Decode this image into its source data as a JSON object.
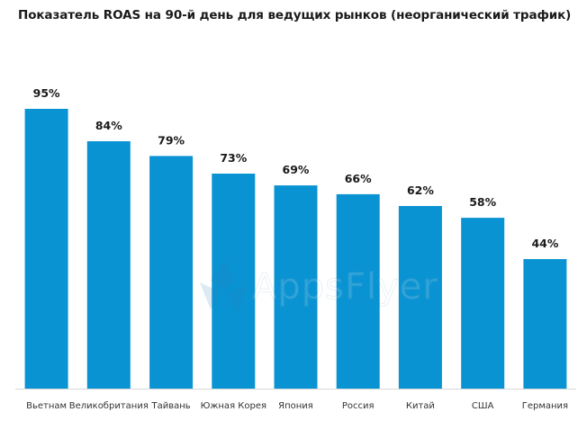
{
  "title": "Показатель ROAS на 90-й день для ведущих рынков (неорганический трафик)",
  "watermark": "AppsFlyer",
  "colors": {
    "bar": "#0a93d2",
    "axis": "#d9d9d9"
  },
  "chart_data": {
    "type": "bar",
    "title": "Показатель ROAS на 90-й день для ведущих рынков (неорганический трафик)",
    "xlabel": "",
    "ylabel": "",
    "ylim": [
      0,
      100
    ],
    "grid": false,
    "legend": "none",
    "categories": [
      "Вьетнам",
      "Великобритания",
      "Тайвань",
      "Южная Корея",
      "Япония",
      "Россия",
      "Китай",
      "США",
      "Германия"
    ],
    "values": [
      95,
      84,
      79,
      73,
      69,
      66,
      62,
      58,
      44
    ],
    "value_labels": [
      "95%",
      "84%",
      "79%",
      "73%",
      "69%",
      "66%",
      "62%",
      "58%",
      "44%"
    ]
  }
}
